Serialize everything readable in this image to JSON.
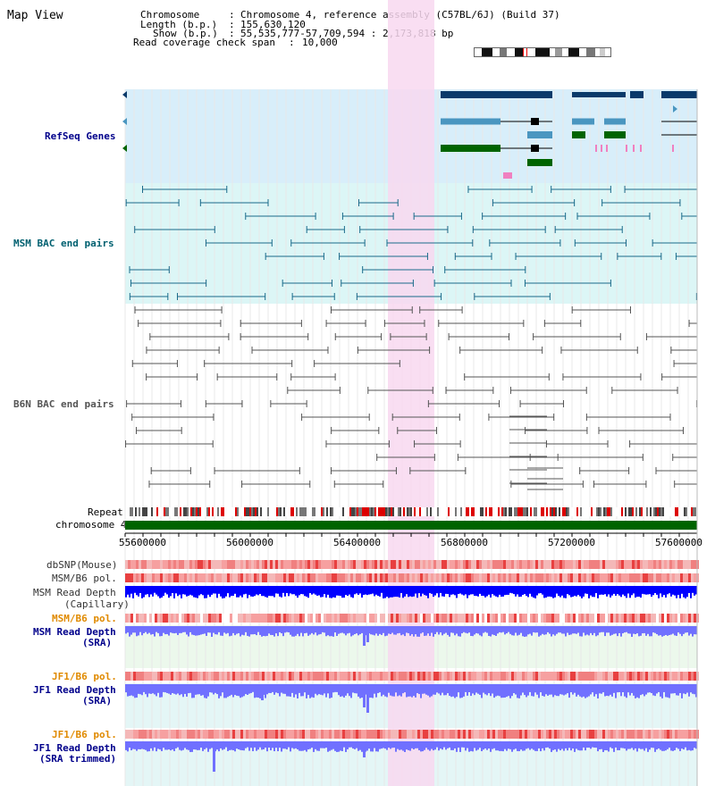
{
  "page_title": "Map View",
  "header": {
    "chromosome_key": "Chromosome",
    "chromosome_val": "Chromosome 4, reference assembly (C57BL/6J) (Build 37)",
    "length_key": "Length (b.p.)",
    "length_val": "155,630,120",
    "show_key": "Show (b.p.)",
    "show_val": "55,535,777-57,709,594 : 2,173,818 bp",
    "coverage_key": "Read coverage check span",
    "coverage_val": "10,000"
  },
  "tracks": {
    "refseq": "RefSeq Genes",
    "msm_bac": "MSM BAC end pairs",
    "b6n_bac": "B6N BAC end pairs",
    "repeat": "Repeat",
    "chromosome": "chromosome 4",
    "dbsnp": "dbSNP(Mouse)",
    "msm_b6_pol_1": "MSM/B6 pol.",
    "msm_read_depth_cap_1": "MSM Read Depth",
    "msm_read_depth_cap_2": "(Capillary)",
    "msm_b6_pol_2": "MSM/B6 pol.",
    "msm_read_depth_sra_1": "MSM Read Depth",
    "msm_read_depth_sra_2": "(SRA)",
    "jf1_b6_pol_1": "JF1/B6 pol.",
    "jf1_read_depth_sra_1": "JF1 Read Depth",
    "jf1_read_depth_sra_2": "(SRA)",
    "jf1_b6_pol_2": "JF1/B6 pol.",
    "jf1_read_depth_trim_1": "JF1 Read Depth",
    "jf1_read_depth_trim_2": "(SRA trimmed)"
  },
  "axis": {
    "ticks": [
      "55600000",
      "56000000",
      "56400000",
      "56800000",
      "57200000",
      "57600000"
    ]
  },
  "colors": {
    "highlight": "#f8d8f0",
    "refseq_bg": "#d8eefa",
    "msm_bg": "#dcf6f6",
    "gene_navy": "#0a3a6a",
    "gene_teal": "#4a96c0",
    "gene_green": "#006400",
    "gene_pink": "#f080c0",
    "label_blue": "#00008b",
    "label_teal": "#006070",
    "label_orange": "#e08a00",
    "depth_blue": "#0000ff",
    "depth_light": "#7070ff"
  }
}
